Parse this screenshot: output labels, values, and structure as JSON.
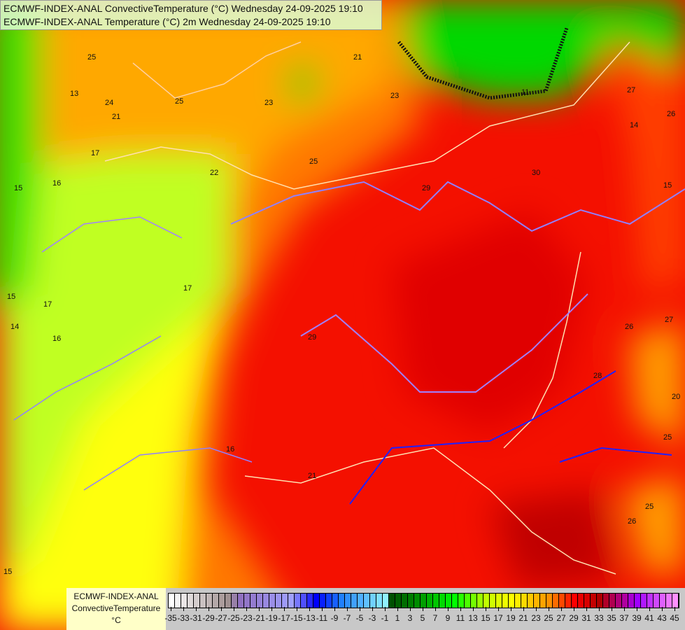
{
  "title": {
    "line1": "ECMWF-INDEX-ANAL ConvectiveTemperature (°C) Wednesday 24-09-2025 19:10",
    "line2": "ECMWF-INDEX-ANAL Temperature (°C) 2m Wednesday 24-09-2025 19:10"
  },
  "legend": {
    "model": "ECMWF-INDEX-ANAL",
    "parameter": "ConvectiveTemperature",
    "unit": "°C",
    "min": -35,
    "max": 45,
    "tick_labels": [
      "-35",
      "-33",
      "-31",
      "-29",
      "-27",
      "-25",
      "-23",
      "-21",
      "-19",
      "-17",
      "-15",
      "-13",
      "-11",
      "-9",
      "-7",
      "-5",
      "-3",
      "-1",
      "1",
      "3",
      "5",
      "7",
      "9",
      "11",
      "13",
      "15",
      "17",
      "19",
      "21",
      "23",
      "25",
      "27",
      "29",
      "31",
      "33",
      "35",
      "37",
      "39",
      "41",
      "43",
      "45"
    ],
    "color_stops": [
      {
        "value": -35,
        "color": "#ffffff"
      },
      {
        "value": -26,
        "color": "#a09090"
      },
      {
        "value": -24,
        "color": "#9070c0"
      },
      {
        "value": -16,
        "color": "#a0a0ff"
      },
      {
        "value": -12,
        "color": "#0000ff"
      },
      {
        "value": -8,
        "color": "#2080ff"
      },
      {
        "value": -1,
        "color": "#90f0ff"
      },
      {
        "value": 0,
        "color": "#005000"
      },
      {
        "value": 4,
        "color": "#008c00"
      },
      {
        "value": 10,
        "color": "#00ff00"
      },
      {
        "value": 15,
        "color": "#c0ff00"
      },
      {
        "value": 19,
        "color": "#ffff00"
      },
      {
        "value": 25,
        "color": "#ff9000"
      },
      {
        "value": 29,
        "color": "#ff0000"
      },
      {
        "value": 33,
        "color": "#b00000"
      },
      {
        "value": 37,
        "color": "#b000a0"
      },
      {
        "value": 39,
        "color": "#a000ff"
      },
      {
        "value": 45,
        "color": "#ff90ff"
      }
    ]
  },
  "contour_labels": [
    "25",
    "24",
    "21",
    "13",
    "25",
    "23",
    "23",
    "21",
    "17",
    "16",
    "15",
    "22",
    "25",
    "29",
    "30",
    "27",
    "26",
    "14",
    "15",
    "17",
    "17",
    "14",
    "16",
    "15",
    "29",
    "16",
    "21",
    "26",
    "27",
    "20",
    "25",
    "26",
    "28",
    "25",
    "15",
    "11"
  ]
}
